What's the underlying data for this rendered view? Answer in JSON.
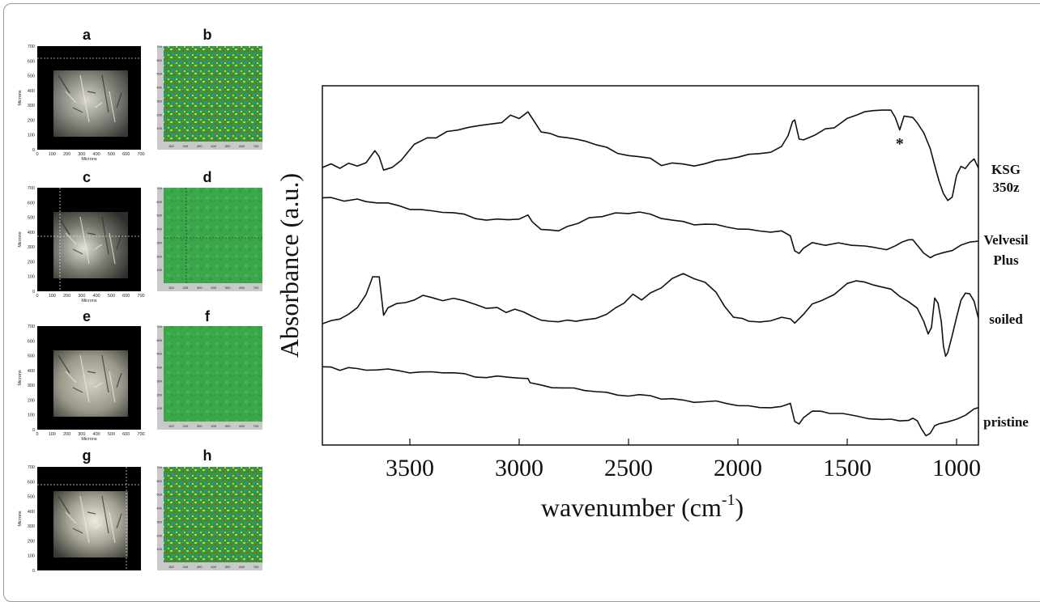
{
  "panels": {
    "letters": [
      "a",
      "b",
      "c",
      "d",
      "e",
      "f",
      "g",
      "h"
    ],
    "micro_axis_label": "Microns",
    "micro_y_ticks": [
      "0",
      "100",
      "200",
      "300",
      "400",
      "500",
      "600",
      "700"
    ],
    "micro_x_ticks": [
      "0",
      "100",
      "200",
      "300",
      "400",
      "500",
      "600",
      "700"
    ],
    "map_x_ticks": [
      "100",
      "200",
      "300",
      "400",
      "500",
      "600",
      "700"
    ],
    "map_y_ticks": [
      "100",
      "200",
      "300",
      "400",
      "500",
      "600",
      "700"
    ]
  },
  "chart_data": {
    "type": "line",
    "xlabel": "wavenumber (cm",
    "xlabel_sup": "-1",
    "xlabel_tail": ")",
    "ylabel": "Absorbance (a.u.)",
    "x_ticks": [
      "3500",
      "3000",
      "2500",
      "2000",
      "1500",
      "1000"
    ],
    "xlim": [
      3900,
      900
    ],
    "x_reversed": true,
    "annotation": "*",
    "annotation_x": 1260,
    "series": [
      {
        "name": "KSG 350z",
        "label_lines": [
          "KSG",
          "350z"
        ],
        "points": [
          [
            3900,
            0.93
          ],
          [
            3860,
            0.87
          ],
          [
            3820,
            0.9
          ],
          [
            3780,
            0.86
          ],
          [
            3740,
            0.9
          ],
          [
            3700,
            0.84
          ],
          [
            3660,
            0.68
          ],
          [
            3640,
            0.75
          ],
          [
            3620,
            0.94
          ],
          [
            3580,
            0.92
          ],
          [
            3540,
            0.82
          ],
          [
            3480,
            0.6
          ],
          [
            3420,
            0.52
          ],
          [
            3380,
            0.48
          ],
          [
            3330,
            0.42
          ],
          [
            3280,
            0.42
          ],
          [
            3230,
            0.36
          ],
          [
            3180,
            0.33
          ],
          [
            3120,
            0.31
          ],
          [
            3080,
            0.28
          ],
          [
            3040,
            0.2
          ],
          [
            3000,
            0.24
          ],
          [
            2960,
            0.15
          ],
          [
            2930,
            0.3
          ],
          [
            2900,
            0.42
          ],
          [
            2860,
            0.46
          ],
          [
            2820,
            0.48
          ],
          [
            2780,
            0.5
          ],
          [
            2740,
            0.52
          ],
          [
            2700,
            0.55
          ],
          [
            2650,
            0.6
          ],
          [
            2600,
            0.64
          ],
          [
            2550,
            0.7
          ],
          [
            2500,
            0.73
          ],
          [
            2450,
            0.78
          ],
          [
            2400,
            0.8
          ],
          [
            2350,
            0.88
          ],
          [
            2300,
            0.85
          ],
          [
            2250,
            0.86
          ],
          [
            2200,
            0.87
          ],
          [
            2150,
            0.86
          ],
          [
            2100,
            0.84
          ],
          [
            2050,
            0.8
          ],
          [
            2000,
            0.76
          ],
          [
            1950,
            0.73
          ],
          [
            1900,
            0.71
          ],
          [
            1850,
            0.69
          ],
          [
            1800,
            0.64
          ],
          [
            1770,
            0.48
          ],
          [
            1750,
            0.3
          ],
          [
            1740,
            0.25
          ],
          [
            1720,
            0.52
          ],
          [
            1700,
            0.52
          ],
          [
            1650,
            0.46
          ],
          [
            1600,
            0.38
          ],
          [
            1560,
            0.36
          ],
          [
            1500,
            0.24
          ],
          [
            1460,
            0.18
          ],
          [
            1420,
            0.15
          ],
          [
            1380,
            0.13
          ],
          [
            1340,
            0.13
          ],
          [
            1300,
            0.12
          ],
          [
            1280,
            0.22
          ],
          [
            1260,
            0.38
          ],
          [
            1240,
            0.22
          ],
          [
            1200,
            0.22
          ],
          [
            1180,
            0.3
          ],
          [
            1150,
            0.45
          ],
          [
            1120,
            0.65
          ],
          [
            1100,
            0.9
          ],
          [
            1080,
            1.1
          ],
          [
            1060,
            1.28
          ],
          [
            1040,
            1.38
          ],
          [
            1020,
            1.3
          ],
          [
            1000,
            1.0
          ],
          [
            980,
            0.9
          ],
          [
            960,
            0.92
          ],
          [
            940,
            0.85
          ],
          [
            920,
            0.82
          ],
          [
            900,
            0.92
          ]
        ]
      },
      {
        "name": "Velvesil Plus",
        "label_lines": [
          "Velvesil",
          "Plus"
        ],
        "points": [
          [
            3900,
            0.18
          ],
          [
            3860,
            0.16
          ],
          [
            3800,
            0.2
          ],
          [
            3740,
            0.19
          ],
          [
            3700,
            0.22
          ],
          [
            3650,
            0.26
          ],
          [
            3600,
            0.29
          ],
          [
            3550,
            0.31
          ],
          [
            3500,
            0.35
          ],
          [
            3450,
            0.38
          ],
          [
            3400,
            0.42
          ],
          [
            3350,
            0.44
          ],
          [
            3300,
            0.47
          ],
          [
            3250,
            0.5
          ],
          [
            3200,
            0.54
          ],
          [
            3150,
            0.57
          ],
          [
            3100,
            0.59
          ],
          [
            3050,
            0.6
          ],
          [
            3000,
            0.58
          ],
          [
            2960,
            0.5
          ],
          [
            2940,
            0.6
          ],
          [
            2900,
            0.78
          ],
          [
            2860,
            0.82
          ],
          [
            2820,
            0.8
          ],
          [
            2780,
            0.72
          ],
          [
            2730,
            0.64
          ],
          [
            2680,
            0.56
          ],
          [
            2620,
            0.5
          ],
          [
            2560,
            0.46
          ],
          [
            2500,
            0.44
          ],
          [
            2450,
            0.46
          ],
          [
            2400,
            0.5
          ],
          [
            2350,
            0.56
          ],
          [
            2300,
            0.6
          ],
          [
            2250,
            0.62
          ],
          [
            2200,
            0.66
          ],
          [
            2150,
            0.68
          ],
          [
            2100,
            0.72
          ],
          [
            2050,
            0.74
          ],
          [
            2000,
            0.76
          ],
          [
            1950,
            0.78
          ],
          [
            1900,
            0.8
          ],
          [
            1850,
            0.82
          ],
          [
            1800,
            0.84
          ],
          [
            1760,
            0.88
          ],
          [
            1740,
            1.2
          ],
          [
            1720,
            1.26
          ],
          [
            1700,
            1.14
          ],
          [
            1660,
            1.08
          ],
          [
            1600,
            1.1
          ],
          [
            1540,
            1.08
          ],
          [
            1480,
            1.12
          ],
          [
            1420,
            1.12
          ],
          [
            1380,
            1.14
          ],
          [
            1320,
            1.16
          ],
          [
            1280,
            1.1
          ],
          [
            1250,
            1.04
          ],
          [
            1220,
            1.02
          ],
          [
            1200,
            0.98
          ],
          [
            1180,
            1.1
          ],
          [
            1150,
            1.28
          ],
          [
            1120,
            1.34
          ],
          [
            1100,
            1.32
          ],
          [
            1060,
            1.26
          ],
          [
            1020,
            1.18
          ],
          [
            980,
            1.1
          ],
          [
            940,
            1.04
          ],
          [
            900,
            1.02
          ]
        ]
      },
      {
        "name": "soiled",
        "label_lines": [
          "soiled"
        ],
        "points": [
          [
            3900,
            0.96
          ],
          [
            3860,
            0.9
          ],
          [
            3820,
            0.84
          ],
          [
            3780,
            0.8
          ],
          [
            3740,
            0.7
          ],
          [
            3700,
            0.48
          ],
          [
            3670,
            0.22
          ],
          [
            3640,
            0.2
          ],
          [
            3620,
            0.8
          ],
          [
            3600,
            0.72
          ],
          [
            3560,
            0.62
          ],
          [
            3520,
            0.6
          ],
          [
            3480,
            0.58
          ],
          [
            3440,
            0.5
          ],
          [
            3400,
            0.54
          ],
          [
            3350,
            0.58
          ],
          [
            3300,
            0.56
          ],
          [
            3250,
            0.6
          ],
          [
            3200,
            0.62
          ],
          [
            3150,
            0.68
          ],
          [
            3100,
            0.7
          ],
          [
            3060,
            0.74
          ],
          [
            3020,
            0.72
          ],
          [
            2980,
            0.78
          ],
          [
            2940,
            0.8
          ],
          [
            2900,
            0.88
          ],
          [
            2860,
            0.92
          ],
          [
            2820,
            0.9
          ],
          [
            2780,
            0.88
          ],
          [
            2740,
            0.9
          ],
          [
            2700,
            0.88
          ],
          [
            2650,
            0.86
          ],
          [
            2600,
            0.8
          ],
          [
            2560,
            0.7
          ],
          [
            2520,
            0.62
          ],
          [
            2480,
            0.48
          ],
          [
            2440,
            0.56
          ],
          [
            2400,
            0.48
          ],
          [
            2350,
            0.38
          ],
          [
            2300,
            0.24
          ],
          [
            2250,
            0.16
          ],
          [
            2200,
            0.22
          ],
          [
            2150,
            0.3
          ],
          [
            2100,
            0.48
          ],
          [
            2060,
            0.66
          ],
          [
            2020,
            0.82
          ],
          [
            1980,
            0.88
          ],
          [
            1950,
            0.9
          ],
          [
            1900,
            0.9
          ],
          [
            1850,
            0.88
          ],
          [
            1800,
            0.86
          ],
          [
            1760,
            0.84
          ],
          [
            1740,
            0.92
          ],
          [
            1720,
            0.86
          ],
          [
            1700,
            0.78
          ],
          [
            1660,
            0.66
          ],
          [
            1620,
            0.58
          ],
          [
            1560,
            0.48
          ],
          [
            1500,
            0.32
          ],
          [
            1460,
            0.26
          ],
          [
            1420,
            0.3
          ],
          [
            1380,
            0.34
          ],
          [
            1340,
            0.38
          ],
          [
            1300,
            0.4
          ],
          [
            1260,
            0.5
          ],
          [
            1220,
            0.62
          ],
          [
            1180,
            0.7
          ],
          [
            1150,
            0.92
          ],
          [
            1130,
            1.12
          ],
          [
            1115,
            1.0
          ],
          [
            1100,
            0.56
          ],
          [
            1085,
            0.6
          ],
          [
            1070,
            0.9
          ],
          [
            1060,
            1.3
          ],
          [
            1050,
            1.42
          ],
          [
            1040,
            1.4
          ],
          [
            1020,
            1.1
          ],
          [
            1000,
            0.82
          ],
          [
            980,
            0.58
          ],
          [
            960,
            0.46
          ],
          [
            940,
            0.48
          ],
          [
            920,
            0.62
          ],
          [
            900,
            0.86
          ]
        ]
      },
      {
        "name": "pristine",
        "label_lines": [
          "pristine"
        ],
        "points": [
          [
            3900,
            0.13
          ],
          [
            3860,
            0.12
          ],
          [
            3820,
            0.14
          ],
          [
            3780,
            0.13
          ],
          [
            3740,
            0.15
          ],
          [
            3700,
            0.16
          ],
          [
            3650,
            0.17
          ],
          [
            3600,
            0.18
          ],
          [
            3550,
            0.18
          ],
          [
            3500,
            0.19
          ],
          [
            3450,
            0.2
          ],
          [
            3400,
            0.21
          ],
          [
            3350,
            0.22
          ],
          [
            3300,
            0.24
          ],
          [
            3250,
            0.26
          ],
          [
            3200,
            0.28
          ],
          [
            3150,
            0.29
          ],
          [
            3100,
            0.3
          ],
          [
            3050,
            0.32
          ],
          [
            3000,
            0.33
          ],
          [
            2960,
            0.34
          ],
          [
            2950,
            0.44
          ],
          [
            2900,
            0.46
          ],
          [
            2850,
            0.48
          ],
          [
            2800,
            0.52
          ],
          [
            2750,
            0.55
          ],
          [
            2700,
            0.58
          ],
          [
            2650,
            0.6
          ],
          [
            2600,
            0.62
          ],
          [
            2550,
            0.64
          ],
          [
            2500,
            0.66
          ],
          [
            2450,
            0.68
          ],
          [
            2400,
            0.7
          ],
          [
            2350,
            0.74
          ],
          [
            2300,
            0.74
          ],
          [
            2250,
            0.76
          ],
          [
            2200,
            0.78
          ],
          [
            2150,
            0.8
          ],
          [
            2100,
            0.82
          ],
          [
            2050,
            0.84
          ],
          [
            2000,
            0.86
          ],
          [
            1950,
            0.88
          ],
          [
            1900,
            0.9
          ],
          [
            1850,
            0.9
          ],
          [
            1800,
            0.92
          ],
          [
            1760,
            0.8
          ],
          [
            1740,
            1.18
          ],
          [
            1720,
            1.24
          ],
          [
            1700,
            1.1
          ],
          [
            1660,
            1.02
          ],
          [
            1620,
            0.98
          ],
          [
            1580,
            1.0
          ],
          [
            1520,
            1.04
          ],
          [
            1460,
            1.06
          ],
          [
            1400,
            1.14
          ],
          [
            1340,
            1.16
          ],
          [
            1300,
            1.14
          ],
          [
            1260,
            1.16
          ],
          [
            1220,
            1.2
          ],
          [
            1200,
            1.12
          ],
          [
            1180,
            1.18
          ],
          [
            1160,
            1.34
          ],
          [
            1140,
            1.44
          ],
          [
            1120,
            1.42
          ],
          [
            1100,
            1.3
          ],
          [
            1080,
            1.24
          ],
          [
            1040,
            1.22
          ],
          [
            1000,
            1.12
          ],
          [
            960,
            1.06
          ],
          [
            920,
            0.98
          ],
          [
            900,
            0.92
          ]
        ]
      }
    ],
    "colors": {
      "line": "#111111",
      "axis": "#111111"
    }
  }
}
